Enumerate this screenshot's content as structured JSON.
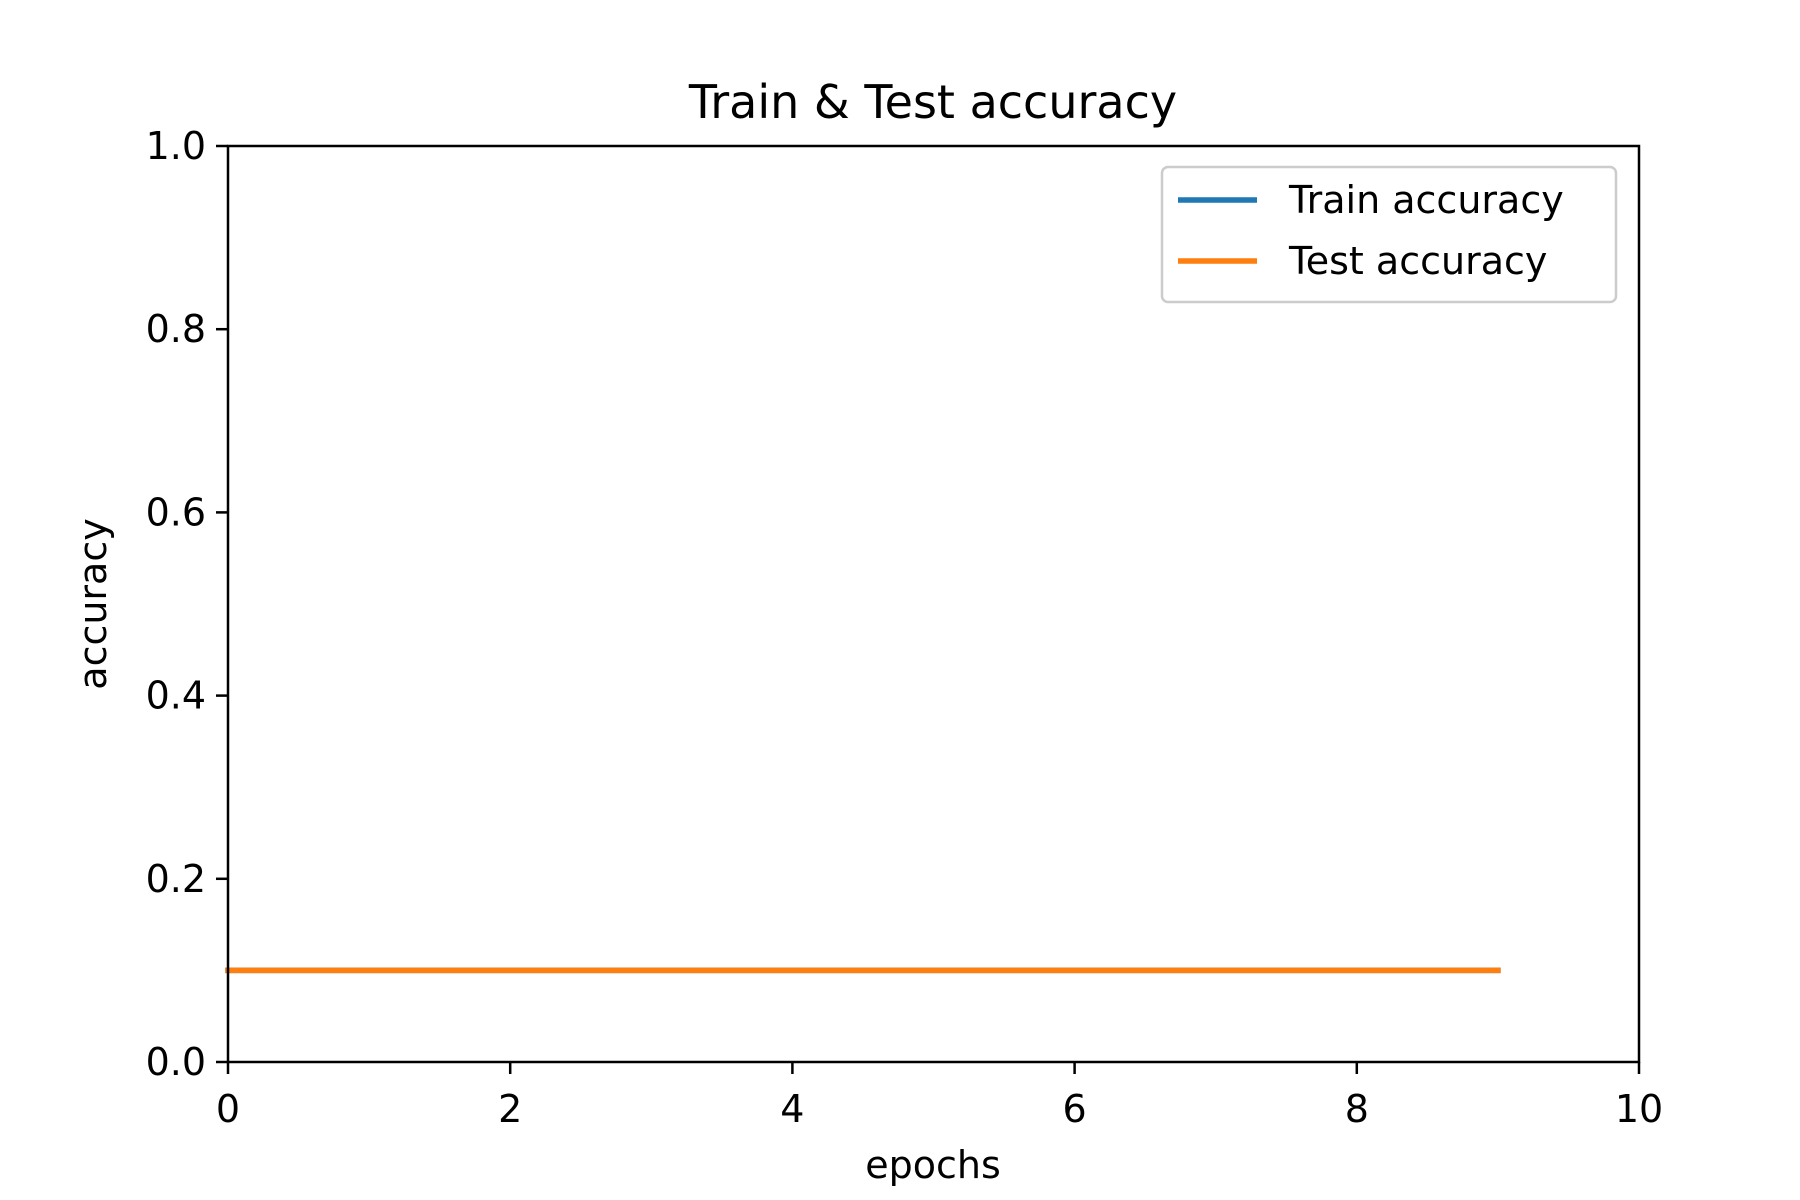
{
  "chart_data": {
    "type": "line",
    "title": "Train & Test accuracy",
    "xlabel": "epochs",
    "ylabel": "accuracy",
    "xlim": [
      0,
      10
    ],
    "ylim": [
      0,
      1.0
    ],
    "xticks": [
      0,
      2,
      4,
      6,
      8,
      10
    ],
    "xtick_labels": [
      "0",
      "2",
      "4",
      "6",
      "8",
      "10"
    ],
    "yticks": [
      0,
      0.2,
      0.4,
      0.6,
      0.8,
      1.0
    ],
    "ytick_labels": [
      "0.0",
      "0.2",
      "0.4",
      "0.6",
      "0.8",
      "1.0"
    ],
    "grid": false,
    "legend_position": "top-right",
    "x": [
      0,
      1,
      2,
      3,
      4,
      5,
      6,
      7,
      8,
      9
    ],
    "series": [
      {
        "name": "Train accuracy",
        "color": "#1f77b4",
        "values": [
          0.1,
          0.1,
          0.1,
          0.1,
          0.1,
          0.1,
          0.1,
          0.1,
          0.1,
          0.1
        ]
      },
      {
        "name": "Test accuracy",
        "color": "#ff7f0e",
        "values": [
          0.1,
          0.1,
          0.1,
          0.1,
          0.1,
          0.1,
          0.1,
          0.1,
          0.1,
          0.1
        ]
      }
    ]
  }
}
